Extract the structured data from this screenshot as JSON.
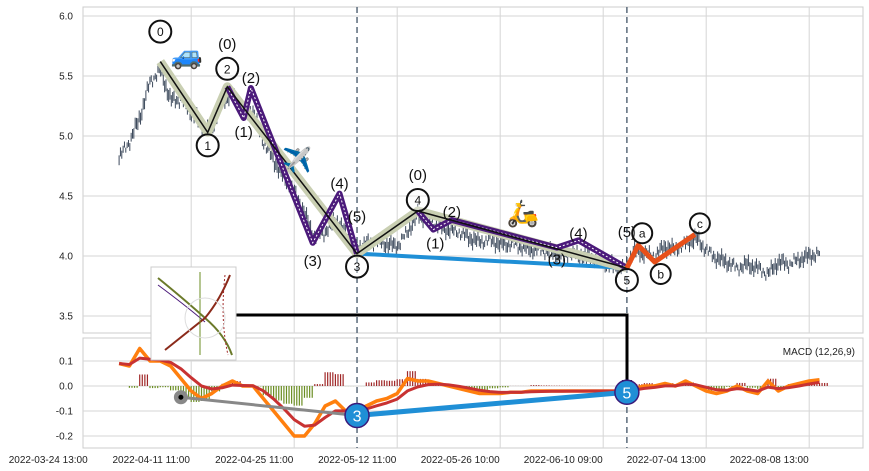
{
  "chart_data": [
    {
      "type": "candlestick",
      "title": "",
      "ylim": [
        3.4,
        6.05
      ],
      "yticks": [
        "6.0",
        "5.5",
        "5.0",
        "4.5",
        "4.0",
        "3.5"
      ],
      "ytick_values": [
        6.0,
        5.5,
        5.0,
        4.5,
        4.0,
        3.5
      ],
      "x_index_start": 70,
      "x_index_step": 10,
      "close": [
        4.82,
        4.95,
        5.15,
        5.45,
        5.55,
        5.3,
        5.3,
        5.2,
        5.1,
        5.05,
        5.3,
        5.35,
        5.2,
        5.2,
        4.95,
        4.8,
        4.65,
        4.55,
        4.35,
        4.15,
        4.2,
        4.3,
        4.2,
        4.05,
        4.1,
        4.12,
        4.1,
        4.08,
        4.2,
        4.35,
        4.3,
        4.25,
        4.22,
        4.2,
        4.15,
        4.12,
        4.13,
        4.1,
        4.1,
        4.08,
        4.06,
        4.05,
        4.03,
        4.0,
        4.02,
        4.0,
        3.98,
        3.95,
        3.92,
        3.9,
        4.05,
        4.02,
        4.0,
        4.08,
        4.05,
        4.1,
        4.15,
        4.05,
        3.98,
        3.95,
        3.9,
        3.93,
        3.9,
        3.85,
        3.95,
        3.93,
        3.97,
        4.0,
        4.02
      ],
      "vlines_index": [
        301,
        563
      ],
      "waves": {
        "primary": {
          "points": [
            [
              110,
              5.62
            ],
            [
              156,
              5.03
            ],
            [
              175,
              5.41
            ],
            [
              301,
              4.02
            ],
            [
              360,
              4.375
            ],
            [
              563,
              3.9
            ]
          ],
          "labels": [
            "0",
            "1",
            "2",
            "3",
            "4",
            "5"
          ]
        },
        "sub1": {
          "points": [
            [
              175,
              5.41
            ],
            [
              191,
              5.15
            ],
            [
              198,
              5.4
            ],
            [
              258,
              4.11
            ],
            [
              284,
              4.52
            ],
            [
              301,
              4.02
            ]
          ],
          "labels": [
            "(0)",
            "(1)",
            "(2)",
            "(3)",
            "(4)",
            "(5)"
          ]
        },
        "sub2": {
          "points": [
            [
              360,
              4.375
            ],
            [
              375,
              4.22
            ],
            [
              393,
              4.3
            ],
            [
              495,
              4.07
            ],
            [
              516,
              4.13
            ],
            [
              563,
              3.9
            ]
          ],
          "labels": [
            "(0)",
            "(1)",
            "(2)",
            "(3)",
            "(4)",
            "(5)"
          ]
        },
        "correction": {
          "points": [
            [
              563,
              3.9
            ],
            [
              574,
              4.09
            ],
            [
              590,
              3.95
            ],
            [
              629,
              4.18
            ]
          ],
          "labels": [
            "a",
            "b",
            "c"
          ]
        },
        "divergence_price": [
          [
            301,
            4.02
          ],
          [
            563,
            3.9
          ]
        ]
      },
      "emoji": {
        "car": "🚙",
        "plane": "✈️",
        "scooter": "🛵"
      },
      "colors": {
        "candle": "#3d4a5c",
        "primary": "#c9cfb2",
        "sub": "#4b1a7a",
        "correction": "#e8501a",
        "divergence": "#1f8fd6"
      }
    },
    {
      "type": "line",
      "legend": "MACD (12,26,9)",
      "ylim": [
        -0.23,
        0.19
      ],
      "yticks": [
        "0.1",
        "0.0",
        "-0.1",
        "-0.2"
      ],
      "ytick_values": [
        0.1,
        0.0,
        -0.1,
        -0.2
      ],
      "x_index_start": 70,
      "x_index_step": 10,
      "macd": [
        0.09,
        0.08,
        0.15,
        0.1,
        0.1,
        0.08,
        0.03,
        -0.02,
        -0.05,
        -0.03,
        0.0,
        0.02,
        0.0,
        0.0,
        -0.05,
        -0.1,
        -0.15,
        -0.2,
        -0.2,
        -0.15,
        -0.08,
        -0.06,
        -0.1,
        -0.1,
        -0.08,
        -0.06,
        -0.05,
        -0.03,
        0.03,
        0.02,
        0.02,
        0.01,
        0.0,
        -0.01,
        -0.02,
        -0.03,
        -0.03,
        -0.03,
        -0.025,
        -0.025,
        -0.02,
        -0.02,
        -0.02,
        -0.02,
        -0.02,
        -0.02,
        -0.02,
        -0.02,
        -0.02,
        -0.02,
        -0.01,
        0.0,
        0.0,
        0.01,
        0.0,
        0.02,
        0.0,
        -0.02,
        -0.03,
        -0.02,
        0.0,
        -0.02,
        -0.03,
        0.02,
        -0.02,
        0.0,
        0.01,
        0.02,
        0.025
      ],
      "divergence_points": [
        [
          130,
          -0.045
        ],
        [
          301,
          -0.118
        ],
        [
          563,
          -0.025
        ]
      ],
      "divergence_labels": [
        "3",
        "5"
      ],
      "colors": {
        "macd": "#ff7f0e",
        "signal": "#c83232",
        "hist_pos": "#a02828",
        "hist_neg": "#6b8e23",
        "divergence": "#1f8fd6",
        "grey": "#888888"
      }
    }
  ],
  "xaxis": {
    "tick_index": [
      40,
      140,
      240,
      340,
      440,
      540,
      640,
      740
    ],
    "labels": [
      "2022-03-24 13:00",
      "2022-04-11 11:00",
      "2022-04-25 11:00",
      "2022-05-12 11:00",
      "2022-05-26 10:00",
      "2022-06-10 09:00",
      "2022-07-04 13:00",
      "2022-08-08 13:00"
    ]
  }
}
